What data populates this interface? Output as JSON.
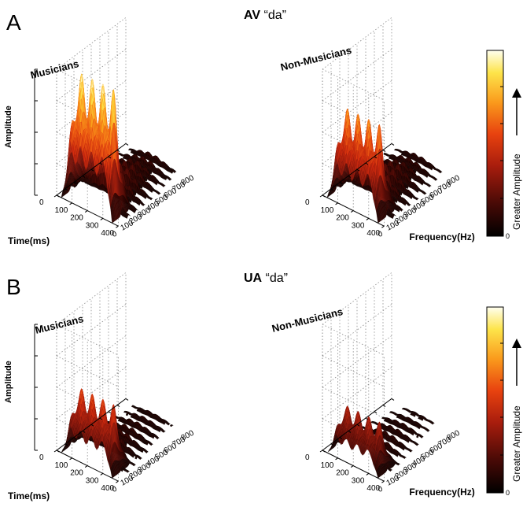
{
  "figure": {
    "panel_labels": [
      "A",
      "B"
    ],
    "titles": [
      {
        "bold": "AV",
        "rest": " “da”"
      },
      {
        "bold": "UA",
        "rest": " “da”"
      }
    ],
    "colorbar_label": "Greater Amplitude",
    "colorbar_tick_top": "",
    "colorbar_tick_bottom": "0"
  },
  "chart_data": [
    {
      "type": "surface3d",
      "panel": "A",
      "title": "AV “da”",
      "subplot_title": "Musicians",
      "xlabel": "Time(ms)",
      "ylabel": "Frequency(Hz)",
      "zlabel": "Amplitude",
      "time_ticks": [
        0,
        100,
        200,
        300,
        400
      ],
      "freq_ticks": [
        0,
        100,
        200,
        300,
        400,
        500,
        600,
        700,
        800
      ],
      "peak_amplitude": 1.0,
      "harmonic_peaks": [
        0.32,
        0.27,
        0.22,
        0.18,
        0.14,
        0.11,
        0.09,
        0.07
      ]
    },
    {
      "type": "surface3d",
      "panel": "A",
      "title": "AV “da”",
      "subplot_title": "Non-Musicians",
      "xlabel": "Time(ms)",
      "ylabel": "Frequency(Hz)",
      "zlabel": "Amplitude",
      "time_ticks": [
        0,
        100,
        200,
        300,
        400
      ],
      "freq_ticks": [
        0,
        100,
        200,
        300,
        400,
        500,
        600,
        700,
        800
      ],
      "peak_amplitude": 0.72,
      "harmonic_peaks": [
        0.28,
        0.24,
        0.2,
        0.17,
        0.14,
        0.1,
        0.08,
        0.06
      ]
    },
    {
      "type": "surface3d",
      "panel": "B",
      "title": "UA “da”",
      "subplot_title": "Musicians",
      "xlabel": "Time(ms)",
      "ylabel": "Frequency(Hz)",
      "zlabel": "Amplitude",
      "time_ticks": [
        0,
        100,
        200,
        300,
        400
      ],
      "freq_ticks": [
        0,
        100,
        200,
        300,
        400,
        500,
        600,
        700,
        800
      ],
      "peak_amplitude": 0.52,
      "harmonic_peaks": [
        0.16,
        0.13,
        0.11,
        0.09,
        0.07,
        0.06,
        0.05,
        0.04
      ]
    },
    {
      "type": "surface3d",
      "panel": "B",
      "title": "UA “da”",
      "subplot_title": "Non-Musicians",
      "xlabel": "Time(ms)",
      "ylabel": "Frequency(Hz)",
      "zlabel": "Amplitude",
      "time_ticks": [
        0,
        100,
        200,
        300,
        400
      ],
      "freq_ticks": [
        0,
        100,
        200,
        300,
        400,
        500,
        600,
        700,
        800
      ],
      "peak_amplitude": 0.38,
      "harmonic_peaks": [
        0.12,
        0.1,
        0.08,
        0.07,
        0.06,
        0.05,
        0.04,
        0.03
      ]
    }
  ],
  "colormap": [
    "#000000",
    "#4a0a06",
    "#8e1a0e",
    "#d42b0e",
    "#f46a14",
    "#fba91c",
    "#fde44a",
    "#fffff0"
  ]
}
